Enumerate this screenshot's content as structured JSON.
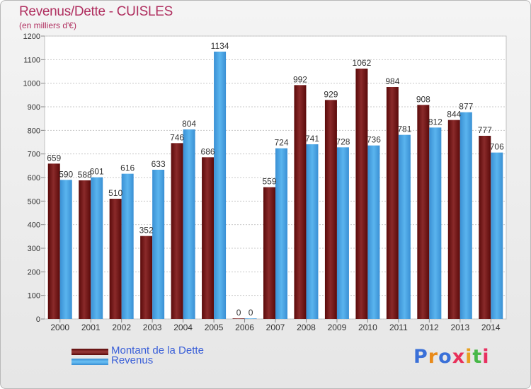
{
  "title": "Revenus/Dette - CUISLES",
  "subtitle": "(en milliers d'€)",
  "legend": [
    {
      "label": "Montant de la Dette",
      "color": "#7a1d1d"
    },
    {
      "label": "Revenus",
      "color": "#49a7e6"
    }
  ],
  "logo": {
    "text": "Proxiti",
    "colors": [
      "#3a70d8",
      "#e88a1a",
      "#3a70d8",
      "#e8305a",
      "#e8a020",
      "#48b848",
      "#e83060"
    ]
  },
  "chart_data": {
    "type": "bar",
    "title": "Revenus/Dette - CUISLES",
    "subtitle": "(en milliers d'€)",
    "categories": [
      "2000",
      "2001",
      "2002",
      "2003",
      "2004",
      "2005",
      "2006",
      "2007",
      "2008",
      "2009",
      "2010",
      "2011",
      "2012",
      "2013",
      "2014"
    ],
    "series": [
      {
        "name": "Montant de la Dette",
        "color": "#7a1d1d",
        "values": [
          659,
          588,
          510,
          352,
          746,
          686,
          0,
          559,
          992,
          929,
          1062,
          984,
          908,
          844,
          777
        ]
      },
      {
        "name": "Revenus",
        "color": "#49a7e6",
        "values": [
          590,
          601,
          616,
          633,
          804,
          1134,
          0,
          724,
          741,
          728,
          736,
          781,
          812,
          877,
          706
        ]
      }
    ],
    "yticks": [
      0,
      100,
      200,
      300,
      400,
      500,
      600,
      700,
      800,
      900,
      1000,
      1100,
      1200
    ],
    "ylim": [
      0,
      1200
    ],
    "grid": true,
    "legend_position": "bottom-left"
  }
}
